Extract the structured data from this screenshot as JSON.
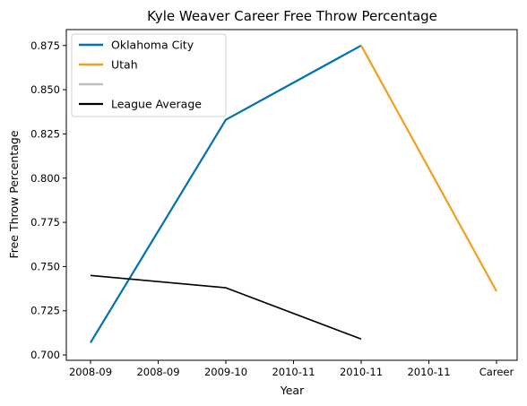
{
  "chart_data": {
    "type": "line",
    "title": "Kyle Weaver Career Free Throw Percentage",
    "xlabel": "Year",
    "ylabel": "Free Throw Percentage",
    "categories": [
      "2008-09",
      "2008-09",
      "2009-10",
      "2010-11",
      "2010-11",
      "2010-11",
      "Career"
    ],
    "ylim": [
      0.697,
      0.884
    ],
    "yticks": [
      "0.700",
      "0.725",
      "0.750",
      "0.775",
      "0.800",
      "0.825",
      "0.850",
      "0.875"
    ],
    "grid": false,
    "legend_position": "top-left",
    "series": [
      {
        "name": "Oklahoma City",
        "color": "#0072b2",
        "points": [
          [
            0,
            0.707
          ],
          [
            2,
            0.833
          ],
          [
            4,
            0.875
          ]
        ]
      },
      {
        "name": "Utah",
        "color": "#f0a020",
        "points": [
          [
            4,
            0.875
          ],
          [
            6,
            0.736
          ]
        ]
      },
      {
        "name": "",
        "color": "#c0c0c0",
        "points": []
      },
      {
        "name": "League Average",
        "color": "#000000",
        "points": [
          [
            0,
            0.745
          ],
          [
            2,
            0.738
          ],
          [
            4,
            0.709
          ]
        ]
      }
    ]
  }
}
